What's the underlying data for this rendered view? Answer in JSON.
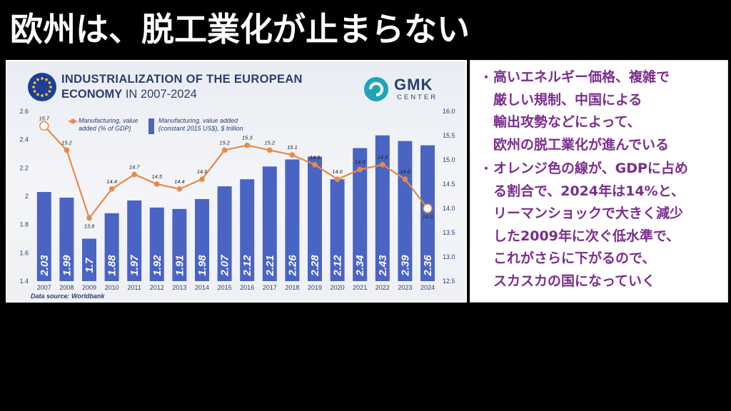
{
  "slide": {
    "title": "欧州は、脱工業化が止まらない"
  },
  "chart_card": {
    "title_line1": "INDUSTRIALIZATION OF THE EUROPEAN",
    "title_line2_bold": "ECONOMY",
    "title_line2_rest": " IN 2007-2024",
    "logo_name": "GMK",
    "logo_sub": "CENTER",
    "source": "Data source: Worldbank",
    "legend": {
      "line_label_1": "Manufacturing, value",
      "line_label_2": "added (% of GDP)",
      "bar_label_1": "Manufacturing, value added",
      "bar_label_2": "(constant 2015 US$), $ trillion"
    }
  },
  "chart_data": {
    "type": "bar",
    "title": "INDUSTRIALIZATION OF THE EUROPEAN ECONOMY IN 2007-2024",
    "categories": [
      "2007",
      "2008",
      "2009",
      "2010",
      "2011",
      "2012",
      "2013",
      "2014",
      "2015",
      "2016",
      "2017",
      "2018",
      "2019",
      "2020",
      "2021",
      "2022",
      "2023",
      "2024"
    ],
    "series": [
      {
        "name": "Manufacturing, value added (constant 2015 US$), $ trillion",
        "type": "bar",
        "axis": "left",
        "values": [
          2.03,
          1.99,
          1.7,
          1.88,
          1.97,
          1.92,
          1.91,
          1.98,
          2.07,
          2.12,
          2.21,
          2.26,
          2.28,
          2.12,
          2.34,
          2.43,
          2.39,
          2.36
        ],
        "labels": [
          "2.03",
          "1.99",
          "1.7",
          "1.88",
          "1.97",
          "1.92",
          "1.91",
          "1.98",
          "2.07",
          "2.12",
          "2.21",
          "2.26",
          "2.28",
          "2.12",
          "2.34",
          "2.43",
          "2.39",
          "2.36"
        ]
      },
      {
        "name": "Manufacturing, value added (% of GDP)",
        "type": "line",
        "axis": "right",
        "values": [
          15.7,
          15.2,
          13.8,
          14.4,
          14.7,
          14.5,
          14.4,
          14.6,
          15.2,
          15.3,
          15.2,
          15.1,
          14.9,
          14.6,
          14.8,
          14.9,
          14.6,
          14.0
        ],
        "labels": [
          "15.7",
          "15.2",
          "13.8",
          "14.4",
          "14.7",
          "14.5",
          "14.4",
          "14.6",
          "15.2",
          "15.3",
          "15.2",
          "15.1",
          "14.9",
          "14.6",
          "14.8",
          "14.9",
          "14.6",
          "14.0"
        ]
      }
    ],
    "y_left": {
      "ylim": [
        1.4,
        2.6
      ],
      "ticks": [
        "1.4",
        "1.6",
        "1.8",
        "2",
        "2.2",
        "2.4",
        "2.6"
      ]
    },
    "y_right": {
      "ylim": [
        12.5,
        16.0
      ],
      "ticks": [
        "12.5",
        "13.0",
        "13.5",
        "14.0",
        "14.5",
        "15.0",
        "15.5",
        "16.0"
      ]
    },
    "grid": false,
    "legend_position": "top-left",
    "colors": {
      "bar": "#4a64c4",
      "line": "#e8894a",
      "axis_text": "#2b3e6e"
    }
  },
  "commentary": {
    "bullets": [
      {
        "marker": "・",
        "lines": [
          "高いエネルギー価格、複雑で",
          "厳しい規制、中国による",
          "輸出攻勢などによって、",
          "欧州の脱工業化が進んでいる"
        ]
      },
      {
        "marker": "・",
        "lines": [
          "オレンジ色の線が、GDPに占め",
          "る割合で、2024年は14%と、",
          "リーマンショックで大きく減少",
          "した2009年に次ぐ低水準で、",
          "これがさらに下がるので、",
          "スカスカの国になっていく"
        ]
      }
    ],
    "color": "#7b2d8e"
  }
}
